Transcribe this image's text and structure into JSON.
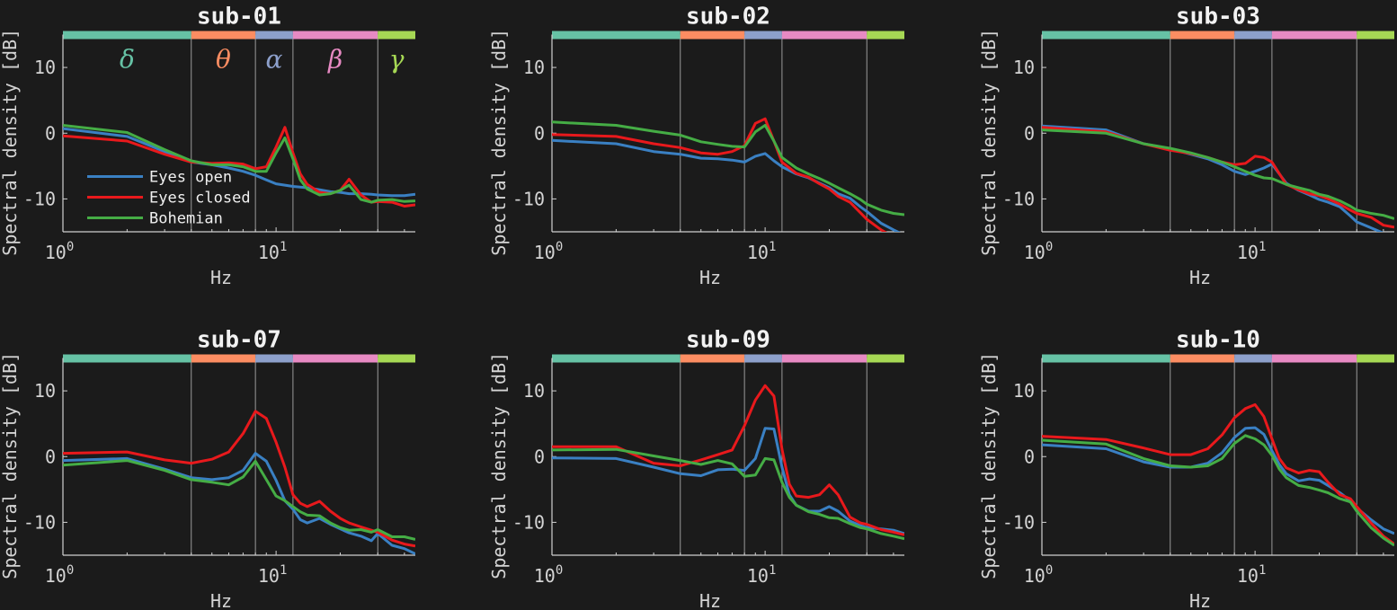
{
  "chart_data": {
    "type": "line",
    "layout": "2x3 grid",
    "xscale": "log",
    "xlim": [
      1,
      45
    ],
    "ylim": [
      -15,
      15
    ],
    "xlabel": "Hz",
    "ylabel": "Spectral density [dB]",
    "xtick_labels": [
      "10^0",
      "10^1"
    ],
    "ytick_labels": [
      "-10",
      "0",
      "10"
    ],
    "bands": [
      {
        "name": "delta",
        "symbol": "δ",
        "range": [
          1,
          4
        ],
        "color": "#66c2a5"
      },
      {
        "name": "theta",
        "symbol": "θ",
        "range": [
          4,
          8
        ],
        "color": "#fc8d62"
      },
      {
        "name": "alpha",
        "symbol": "α",
        "range": [
          8,
          12
        ],
        "color": "#8da0cb"
      },
      {
        "name": "beta",
        "symbol": "β",
        "range": [
          12,
          30
        ],
        "color": "#e78ac3"
      },
      {
        "name": "gamma",
        "symbol": "γ",
        "range": [
          30,
          45
        ],
        "color": "#a6d854"
      }
    ],
    "legend": {
      "placement": "lower-left of first panel",
      "entries": [
        {
          "name": "Eyes open",
          "color": "#3a80c3"
        },
        {
          "name": "Eyes closed",
          "color": "#e8191c"
        },
        {
          "name": "Bohemian",
          "color": "#45ad45"
        }
      ]
    },
    "panels": [
      {
        "title": "sub-01",
        "show_band_labels": true,
        "show_legend": true,
        "x": [
          1,
          2,
          3,
          4,
          5,
          6,
          7,
          8,
          9,
          10,
          11,
          12,
          13,
          14,
          16,
          18,
          20,
          22,
          25,
          28,
          30,
          35,
          40,
          45
        ],
        "series": [
          {
            "name": "Eyes open",
            "values": [
              0.7,
              -0.5,
              -2.8,
              -4.4,
              -4.8,
              -5.3,
              -5.8,
              -6.4,
              -7.1,
              -7.7,
              -7.9,
              -8.1,
              -8.2,
              -8.3,
              -8.6,
              -8.9,
              -9.0,
              -9.2,
              -9.2,
              -9.3,
              -9.4,
              -9.5,
              -9.5,
              -9.3
            ]
          },
          {
            "name": "Eyes closed",
            "values": [
              -0.4,
              -1.2,
              -3.2,
              -4.4,
              -4.6,
              -4.5,
              -4.7,
              -5.4,
              -5.1,
              -2.1,
              0.9,
              -3.0,
              -6.2,
              -7.8,
              -9.0,
              -9.2,
              -8.7,
              -7.0,
              -9.4,
              -10.5,
              -10.4,
              -10.5,
              -11.1,
              -10.9
            ]
          },
          {
            "name": "Bohemian",
            "values": [
              1.2,
              0.1,
              -2.5,
              -4.2,
              -4.8,
              -4.8,
              -5.1,
              -5.8,
              -5.8,
              -3.0,
              -0.7,
              -3.9,
              -7.1,
              -8.5,
              -9.4,
              -9.2,
              -8.7,
              -7.9,
              -10.1,
              -10.5,
              -10.2,
              -10.1,
              -10.4,
              -10.3
            ]
          }
        ]
      },
      {
        "title": "sub-02",
        "x": [
          1,
          2,
          3,
          4,
          5,
          6,
          7,
          8,
          9,
          10,
          11,
          12,
          14,
          16,
          18,
          20,
          22,
          25,
          28,
          30,
          35,
          40,
          45
        ],
        "series": [
          {
            "name": "Eyes open",
            "values": [
              -1.1,
              -1.6,
              -2.8,
              -3.2,
              -3.8,
              -3.9,
              -4.1,
              -4.4,
              -3.5,
              -3.1,
              -4.2,
              -5.1,
              -6.2,
              -6.8,
              -7.6,
              -8.3,
              -9.2,
              -9.9,
              -11.2,
              -11.9,
              -13.7,
              -14.7,
              -15.5
            ]
          },
          {
            "name": "Eyes closed",
            "values": [
              -0.2,
              -0.5,
              -1.6,
              -2.2,
              -3.0,
              -3.2,
              -2.8,
              -1.9,
              1.5,
              2.2,
              -1.2,
              -4.4,
              -6.1,
              -6.7,
              -7.7,
              -8.5,
              -9.6,
              -10.5,
              -12.1,
              -13.1,
              -14.7,
              -15.8,
              -16.5
            ]
          },
          {
            "name": "Bohemian",
            "values": [
              1.7,
              1.2,
              0.3,
              -0.3,
              -1.3,
              -1.7,
              -2.0,
              -2.1,
              0.2,
              1.2,
              -1.2,
              -3.7,
              -5.3,
              -6.2,
              -6.9,
              -7.6,
              -8.3,
              -9.2,
              -10.1,
              -10.8,
              -11.7,
              -12.2,
              -12.4
            ]
          }
        ]
      },
      {
        "title": "sub-03",
        "x": [
          1,
          2,
          3,
          4,
          5,
          6,
          7,
          8,
          9,
          10,
          11,
          12,
          14,
          16,
          18,
          20,
          22,
          25,
          28,
          30,
          35,
          40,
          45
        ],
        "series": [
          {
            "name": "Eyes open",
            "values": [
              1.1,
              0.5,
              -1.6,
              -2.4,
              -3.2,
              -3.9,
              -4.8,
              -5.8,
              -6.3,
              -5.8,
              -5.3,
              -4.7,
              -7.6,
              -8.7,
              -9.4,
              -10.1,
              -10.5,
              -11.2,
              -12.6,
              -13.5,
              -14.4,
              -15.2,
              -16.0
            ]
          },
          {
            "name": "Eyes closed",
            "values": [
              0.9,
              0.2,
              -1.6,
              -2.6,
              -3.1,
              -3.7,
              -4.4,
              -4.8,
              -4.6,
              -3.5,
              -3.7,
              -4.4,
              -7.8,
              -8.6,
              -9.2,
              -9.5,
              -10.0,
              -10.8,
              -11.7,
              -12.2,
              -12.8,
              -14.0,
              -14.3
            ]
          },
          {
            "name": "Bohemian",
            "values": [
              0.5,
              0.0,
              -1.6,
              -2.3,
              -3.0,
              -3.7,
              -4.4,
              -5.1,
              -5.8,
              -6.4,
              -6.8,
              -6.9,
              -7.8,
              -8.3,
              -8.7,
              -9.3,
              -9.6,
              -10.3,
              -11.1,
              -11.7,
              -12.2,
              -12.5,
              -13.0
            ]
          }
        ]
      },
      {
        "title": "sub-07",
        "x": [
          1,
          2,
          3,
          4,
          5,
          6,
          7,
          8,
          9,
          10,
          11,
          12,
          13,
          14,
          16,
          18,
          20,
          22,
          25,
          28,
          30,
          35,
          40,
          45
        ],
        "series": [
          {
            "name": "Eyes open",
            "values": [
              -0.6,
              -0.3,
              -1.9,
              -3.2,
              -3.5,
              -3.2,
              -2.1,
              0.5,
              -0.7,
              -3.6,
              -6.7,
              -8.0,
              -9.6,
              -10.1,
              -9.4,
              -10.3,
              -11.0,
              -11.6,
              -12.1,
              -12.8,
              -11.7,
              -13.5,
              -14.0,
              -14.8
            ]
          },
          {
            "name": "Eyes closed",
            "values": [
              0.5,
              0.7,
              -0.5,
              -1.0,
              -0.4,
              0.7,
              3.5,
              6.9,
              5.8,
              2.2,
              -1.6,
              -5.8,
              -7.1,
              -7.6,
              -6.8,
              -8.3,
              -9.4,
              -10.1,
              -10.7,
              -11.2,
              -11.5,
              -12.7,
              -13.3,
              -13.6
            ]
          },
          {
            "name": "Bohemian",
            "values": [
              -1.3,
              -0.6,
              -2.1,
              -3.5,
              -3.9,
              -4.3,
              -3.1,
              -0.7,
              -3.5,
              -6.0,
              -6.7,
              -7.6,
              -8.4,
              -8.9,
              -9.0,
              -10.1,
              -10.8,
              -11.2,
              -11.1,
              -11.5,
              -11.1,
              -12.2,
              -12.2,
              -12.6
            ]
          }
        ]
      },
      {
        "title": "sub-09",
        "x": [
          1,
          2,
          3,
          4,
          5,
          6,
          7,
          8,
          9,
          10,
          11,
          12,
          13,
          14,
          16,
          18,
          20,
          22,
          25,
          28,
          30,
          35,
          40,
          45
        ],
        "series": [
          {
            "name": "Eyes open",
            "values": [
              -0.2,
              -0.3,
              -1.6,
              -2.6,
              -2.9,
              -2.0,
              -1.9,
              -2.1,
              -0.3,
              4.3,
              4.2,
              -1.6,
              -5.8,
              -7.4,
              -8.3,
              -8.3,
              -7.6,
              -8.3,
              -9.8,
              -10.5,
              -10.8,
              -11.0,
              -11.2,
              -11.7
            ]
          },
          {
            "name": "Eyes closed",
            "values": [
              1.5,
              1.5,
              -1.0,
              -1.4,
              -0.5,
              0.3,
              1.0,
              4.7,
              8.6,
              10.8,
              9.2,
              1.1,
              -4.2,
              -6.0,
              -6.2,
              -5.8,
              -4.3,
              -5.8,
              -9.2,
              -10.1,
              -10.3,
              -11.1,
              -11.5,
              -11.9
            ]
          },
          {
            "name": "Bohemian",
            "values": [
              1.0,
              1.1,
              0.1,
              -0.6,
              -1.2,
              -0.6,
              -1.1,
              -3.0,
              -2.8,
              -0.3,
              -0.5,
              -3.9,
              -6.2,
              -7.4,
              -8.4,
              -8.8,
              -9.3,
              -9.4,
              -10.2,
              -10.8,
              -11.0,
              -11.7,
              -12.1,
              -12.5
            ]
          }
        ]
      },
      {
        "title": "sub-10",
        "x": [
          1,
          2,
          3,
          4,
          5,
          6,
          7,
          8,
          9,
          10,
          11,
          12,
          13,
          14,
          16,
          18,
          20,
          22,
          25,
          28,
          30,
          35,
          40,
          45
        ],
        "series": [
          {
            "name": "Eyes open",
            "values": [
              1.8,
              1.2,
              -0.8,
              -1.6,
              -1.6,
              -1.0,
              0.6,
              2.9,
              4.3,
              4.4,
              3.4,
              0.9,
              -1.2,
              -2.6,
              -3.7,
              -3.4,
              -3.6,
              -4.4,
              -5.5,
              -6.7,
              -7.8,
              -9.6,
              -11.0,
              -11.7
            ]
          },
          {
            "name": "Eyes closed",
            "values": [
              3.1,
              2.6,
              1.3,
              0.3,
              0.3,
              1.2,
              3.3,
              5.9,
              7.3,
              7.9,
              6.1,
              2.7,
              -0.3,
              -1.7,
              -2.5,
              -2.1,
              -2.3,
              -3.9,
              -5.8,
              -6.4,
              -7.6,
              -10.1,
              -12.1,
              -13.3
            ]
          },
          {
            "name": "Bohemian",
            "values": [
              2.5,
              1.9,
              -0.3,
              -1.4,
              -1.6,
              -1.4,
              -0.3,
              2.0,
              3.2,
              2.7,
              1.8,
              0.2,
              -1.9,
              -3.2,
              -4.4,
              -4.7,
              -5.1,
              -5.5,
              -6.4,
              -6.9,
              -8.3,
              -10.8,
              -12.4,
              -13.5
            ]
          }
        ]
      }
    ]
  }
}
